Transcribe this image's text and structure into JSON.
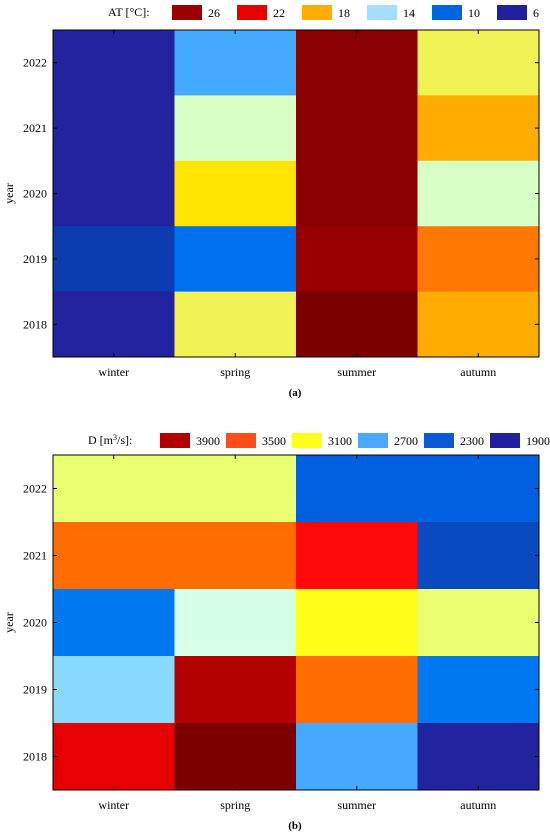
{
  "chart_data": [
    {
      "type": "heatmap",
      "panel_label": "(a)",
      "legend_title_main": "AT [°C]:",
      "legend_title_sup": "",
      "legend_title_end": "",
      "legend": [
        {
          "label": "26",
          "color": "#9b0000"
        },
        {
          "label": "22",
          "color": "#e60000"
        },
        {
          "label": "18",
          "color": "#ffae00"
        },
        {
          "label": "14",
          "color": "#a6dcff"
        },
        {
          "label": "10",
          "color": "#0066e0"
        },
        {
          "label": "6",
          "color": "#2121a0"
        }
      ],
      "ylabel": "year",
      "columns": [
        "winter",
        "spring",
        "summer",
        "autumn"
      ],
      "rows": [
        "2022",
        "2021",
        "2020",
        "2019",
        "2018"
      ],
      "cells": [
        [
          "#2323a0",
          "#44aaff",
          "#8b0000",
          "#f2f255"
        ],
        [
          "#2323a0",
          "#d8ffc4",
          "#8b0000",
          "#ffac00"
        ],
        [
          "#2323a0",
          "#ffe600",
          "#8b0000",
          "#d8ffc4"
        ],
        [
          "#0b3cb0",
          "#0070f0",
          "#960000",
          "#ff7800"
        ],
        [
          "#2323a0",
          "#f2f255",
          "#7a0000",
          "#ffac00"
        ]
      ]
    },
    {
      "type": "heatmap",
      "panel_label": "(b)",
      "legend_title_main": "D [m",
      "legend_title_sup": "3",
      "legend_title_end": "/s]:",
      "legend": [
        {
          "label": "3900",
          "color": "#b30000"
        },
        {
          "label": "3500",
          "color": "#ff4d1a"
        },
        {
          "label": "3100",
          "color": "#ffff1a"
        },
        {
          "label": "2700",
          "color": "#4aa8ff"
        },
        {
          "label": "2300",
          "color": "#0a5ad6"
        },
        {
          "label": "1900",
          "color": "#2121a0"
        }
      ],
      "ylabel": "year",
      "columns": [
        "winter",
        "spring",
        "summer",
        "autumn"
      ],
      "rows": [
        "2022",
        "2021",
        "2020",
        "2019",
        "2018"
      ],
      "cells": [
        [
          "#eaff70",
          "#eaff70",
          "#0060e0",
          "#0060e0"
        ],
        [
          "#ff6c00",
          "#ff6c00",
          "#ff0a0a",
          "#0a4ac0"
        ],
        [
          "#0078f0",
          "#d6ffe8",
          "#ffff1a",
          "#eaff70"
        ],
        [
          "#88d8ff",
          "#b40000",
          "#ff6c00",
          "#0078f0"
        ],
        [
          "#e60000",
          "#7c0000",
          "#44aaff",
          "#2323a0"
        ]
      ]
    }
  ]
}
